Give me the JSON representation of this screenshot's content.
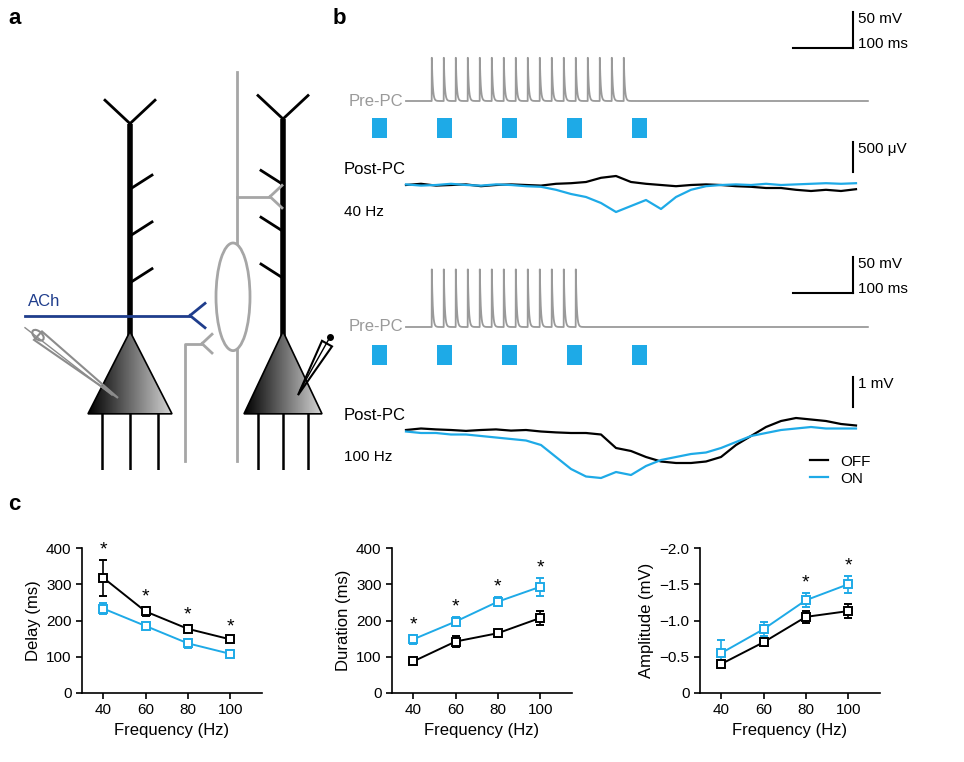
{
  "panel_labels": [
    "a",
    "b",
    "c"
  ],
  "diagram": {
    "ach_label": "ACh"
  },
  "traces": {
    "pre_label": "Pre-PC",
    "post_label": "Post-PC",
    "pre_color": "#9a9a9a",
    "pulse_color": "#1eaae7",
    "legend": "lower right",
    "rows": [
      {
        "frequency_label": "40 Hz",
        "pre": {
          "start": 110,
          "end": 880,
          "spike_height": 60,
          "spike_times": [
            153,
            173,
            193,
            213,
            233,
            253,
            273,
            293,
            313,
            333,
            353,
            373,
            393,
            413,
            433,
            453,
            473
          ]
        },
        "pulses": {
          "starts": [
            53,
            162,
            270,
            378,
            487
          ],
          "duration": 25
        },
        "post": {
          "t": [
            110,
            135,
            160,
            185,
            210,
            235,
            260,
            285,
            310,
            335,
            360,
            385,
            410,
            435,
            460,
            485,
            510,
            535,
            560,
            585,
            610,
            635,
            660,
            685,
            710,
            735,
            760,
            785,
            810,
            835,
            860
          ],
          "series": [
            {
              "name": "OFF",
              "color": "#000000",
              "values": [
                0,
                0.02,
                -0.01,
                0,
                0.01,
                -0.02,
                0,
                0.01,
                0,
                -0.01,
                0.02,
                0.03,
                0.05,
                0.12,
                0.15,
                0.05,
                0.02,
                0,
                -0.02,
                0,
                0.01,
                0,
                -0.02,
                -0.03,
                -0.05,
                -0.05,
                -0.08,
                -0.1,
                -0.08,
                -0.1,
                -0.07
              ]
            },
            {
              "name": "ON",
              "color": "#1eaae7",
              "values": [
                0.01,
                -0.01,
                0,
                0.02,
                0,
                -0.01,
                0.01,
                0,
                -0.02,
                -0.03,
                -0.08,
                -0.15,
                -0.2,
                -0.3,
                -0.45,
                -0.35,
                -0.25,
                -0.4,
                -0.2,
                -0.08,
                -0.02,
                0,
                0.01,
                0,
                0.02,
                0,
                0.01,
                0.02,
                0.03,
                0.02,
                0.03
              ]
            }
          ]
        },
        "scale_bars": {
          "pre": {
            "value": 50,
            "label": "50 mV"
          },
          "time": {
            "value": 100,
            "label": "100 ms"
          },
          "post": {
            "value": 0.5,
            "label": "500 μV"
          }
        }
      },
      {
        "frequency_label": "100 Hz",
        "pre": {
          "start": 110,
          "end": 880,
          "spike_height": 80,
          "spike_times": [
            153,
            173,
            193,
            213,
            233,
            253,
            273,
            293,
            313,
            333,
            353,
            373,
            393
          ]
        },
        "pulses": {
          "starts": [
            53,
            162,
            270,
            378,
            487
          ],
          "duration": 25
        },
        "post": {
          "t": [
            110,
            135,
            160,
            185,
            210,
            235,
            260,
            285,
            310,
            335,
            360,
            385,
            410,
            435,
            460,
            485,
            510,
            535,
            560,
            585,
            610,
            635,
            660,
            685,
            710,
            735,
            760,
            785,
            810,
            835,
            860
          ],
          "series": [
            {
              "name": "OFF",
              "color": "#000000",
              "values": [
                0,
                0.05,
                0.02,
                0,
                -0.03,
                0,
                0.02,
                -0.02,
                0,
                -0.05,
                -0.08,
                -0.1,
                -0.1,
                -0.15,
                -0.6,
                -0.7,
                -0.9,
                -1.05,
                -1.1,
                -1.1,
                -1.05,
                -0.9,
                -0.5,
                -0.2,
                0.1,
                0.3,
                0.4,
                0.35,
                0.3,
                0.2,
                0.15
              ]
            },
            {
              "name": "ON",
              "color": "#1eaae7",
              "values": [
                -0.05,
                -0.1,
                -0.1,
                -0.15,
                -0.15,
                -0.2,
                -0.25,
                -0.3,
                -0.35,
                -0.5,
                -0.9,
                -1.3,
                -1.55,
                -1.6,
                -1.4,
                -1.5,
                -1.2,
                -1.0,
                -0.9,
                -0.8,
                -0.75,
                -0.6,
                -0.4,
                -0.2,
                -0.1,
                0,
                0.05,
                0.1,
                0.05,
                0.05,
                0.05
              ]
            }
          ]
        },
        "scale_bars": {
          "pre": {
            "value": 50,
            "label": "50 mV"
          },
          "time": {
            "value": 100,
            "label": "100 ms"
          },
          "post": {
            "value": 1,
            "label": "1 mV"
          }
        }
      }
    ]
  },
  "chart_data": [
    {
      "type": "line",
      "marker": "square",
      "x_label": "Frequency (Hz)",
      "y_label": "Delay (ms)",
      "x": [
        40,
        60,
        80,
        100
      ],
      "xlim": [
        30,
        115
      ],
      "xticks": [
        40,
        60,
        80,
        100
      ],
      "ylim": [
        0,
        400
      ],
      "yticks": [
        0,
        100,
        200,
        300,
        400
      ],
      "series": [
        {
          "color": "#000000",
          "values": [
            318,
            225,
            177,
            148
          ],
          "errors": [
            50,
            12,
            10,
            8
          ]
        },
        {
          "color": "#1eaae7",
          "values": [
            233,
            185,
            137,
            108
          ],
          "errors": [
            15,
            8,
            12,
            10
          ]
        }
      ],
      "significance": [
        "*",
        "*",
        "*",
        "*"
      ]
    },
    {
      "type": "line",
      "marker": "square",
      "x_label": "Frequency (Hz)",
      "y_label": "Duration (ms)",
      "x": [
        40,
        60,
        80,
        100
      ],
      "xlim": [
        30,
        115
      ],
      "xticks": [
        40,
        60,
        80,
        100
      ],
      "ylim": [
        0,
        400
      ],
      "yticks": [
        0,
        100,
        200,
        300,
        400
      ],
      "series": [
        {
          "color": "#000000",
          "values": [
            87,
            142,
            165,
            207
          ],
          "errors": [
            8,
            15,
            10,
            20
          ]
        },
        {
          "color": "#1eaae7",
          "values": [
            148,
            197,
            252,
            293
          ],
          "errors": [
            12,
            12,
            12,
            25
          ]
        }
      ],
      "significance": [
        "*",
        "*",
        "*",
        "*"
      ]
    },
    {
      "type": "line",
      "marker": "square",
      "x_label": "Frequency (Hz)",
      "y_label": "Amplitude (mV)",
      "x": [
        40,
        60,
        80,
        100
      ],
      "xlim": [
        30,
        115
      ],
      "xticks": [
        40,
        60,
        80,
        100
      ],
      "ylim": [
        0,
        -2.0
      ],
      "yticks": [
        0,
        {
          "value": -0.5,
          "label": "−0.5"
        },
        {
          "value": -1.0,
          "label": "−1.0"
        },
        {
          "value": -1.5,
          "label": "−1.5"
        },
        {
          "value": -2.0,
          "label": "−2.0"
        }
      ],
      "series": [
        {
          "color": "#000000",
          "values": [
            -0.4,
            -0.7,
            -1.05,
            -1.13
          ],
          "errors": [
            0.06,
            0.05,
            0.08,
            0.1
          ]
        },
        {
          "color": "#1eaae7",
          "values": [
            -0.55,
            -0.88,
            -1.28,
            -1.5
          ],
          "errors": [
            0.18,
            0.1,
            0.1,
            0.12
          ]
        }
      ],
      "significance": [
        null,
        null,
        "*",
        "*"
      ]
    }
  ]
}
